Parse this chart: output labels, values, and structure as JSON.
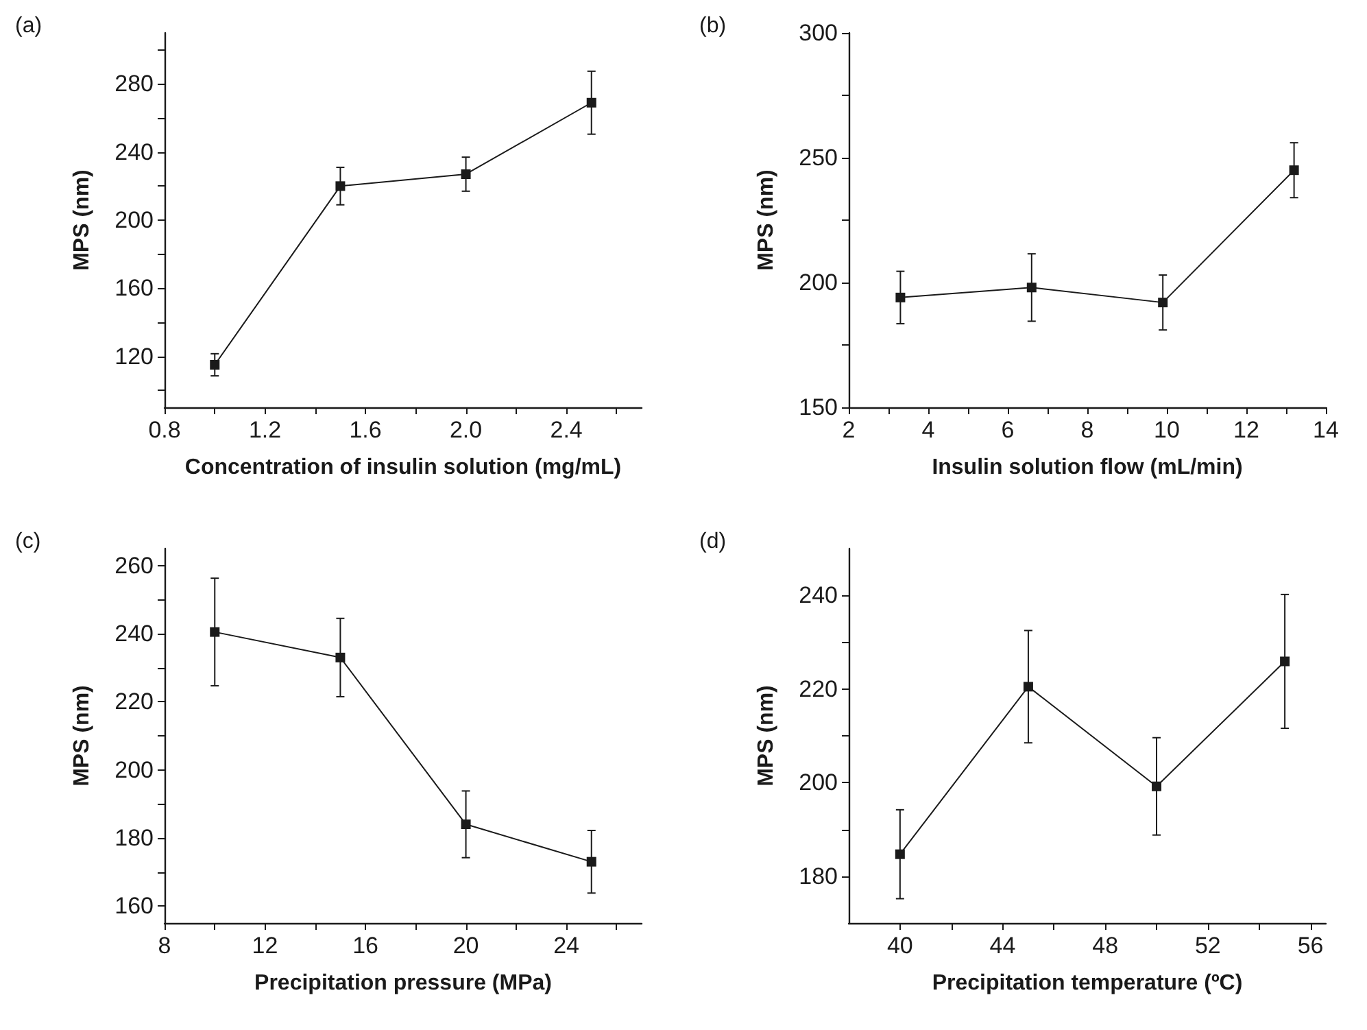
{
  "chart_data": [
    {
      "type": "line",
      "title": "(a)",
      "xlabel": "Concentration of insulin solution (mg/mL)",
      "ylabel": "MPS (nm)",
      "x": [
        1.0,
        1.5,
        2.0,
        2.5
      ],
      "xlim": [
        0.8,
        2.7
      ],
      "ylim": [
        90,
        310
      ],
      "xticks": [
        0.8,
        {
          "value": 1.0,
          "label": null
        },
        1.2,
        {
          "value": 1.4,
          "label": null
        },
        1.6,
        {
          "value": 1.8,
          "label": null
        },
        {
          "value": 2,
          "label": "2.0"
        },
        {
          "value": 2.2,
          "label": null
        },
        2.4,
        {
          "value": 2.6,
          "label": null
        }
      ],
      "yticks": [
        {
          "value": 100,
          "label": null
        },
        120,
        {
          "value": 140,
          "label": null
        },
        160,
        {
          "value": 180,
          "label": null
        },
        200,
        {
          "value": 220,
          "label": null
        },
        240,
        {
          "value": 260,
          "label": null
        },
        280,
        {
          "value": 300,
          "label": null
        }
      ],
      "series": [
        {
          "color": "#1a1a1a",
          "values": [
            115,
            220,
            227,
            269
          ],
          "errors": [
            6.5,
            11,
            10,
            18.5
          ]
        }
      ],
      "marker": "square",
      "line_style": "solid"
    },
    {
      "type": "line",
      "title": "(b)",
      "xlabel": "Insulin solution flow (mL/min)",
      "ylabel": "MPS (nm)",
      "x": [
        3.3,
        6.6,
        9.9,
        13.2
      ],
      "xlim": [
        2,
        14
      ],
      "ylim": [
        150,
        300
      ],
      "xticks": [
        2,
        {
          "value": 3,
          "label": null
        },
        4,
        {
          "value": 5,
          "label": null
        },
        6,
        {
          "value": 7,
          "label": null
        },
        8,
        {
          "value": 9,
          "label": null
        },
        10,
        {
          "value": 11,
          "label": null
        },
        12,
        {
          "value": 13,
          "label": null
        },
        14
      ],
      "yticks": [
        150,
        {
          "value": 175,
          "label": null
        },
        200,
        {
          "value": 225,
          "label": null
        },
        250,
        {
          "value": 275,
          "label": null
        },
        300
      ],
      "series": [
        {
          "color": "#1a1a1a",
          "values": [
            194,
            198,
            192,
            245
          ],
          "errors": [
            10.5,
            13.5,
            11,
            11
          ]
        }
      ],
      "marker": "square",
      "line_style": "solid"
    },
    {
      "type": "line",
      "title": "(c)",
      "xlabel": "Precipitation pressure (MPa)",
      "ylabel": "MPS (nm)",
      "x": [
        10,
        15,
        20,
        25
      ],
      "xlim": [
        8,
        27
      ],
      "ylim": [
        155,
        265
      ],
      "xticks": [
        8,
        {
          "value": 10,
          "label": null
        },
        12,
        {
          "value": 14,
          "label": null
        },
        16,
        {
          "value": 18,
          "label": null
        },
        20,
        {
          "value": 22,
          "label": null
        },
        24,
        {
          "value": 26,
          "label": null
        }
      ],
      "yticks": [
        160,
        {
          "value": 170,
          "label": null
        },
        180,
        {
          "value": 190,
          "label": null
        },
        200,
        {
          "value": 210,
          "label": null
        },
        220,
        {
          "value": 230,
          "label": null
        },
        240,
        {
          "value": 250,
          "label": null
        },
        260
      ],
      "series": [
        {
          "color": "#1a1a1a",
          "values": [
            240.5,
            233,
            184,
            173
          ],
          "errors": [
            15.8,
            11.5,
            9.8,
            9.2
          ]
        }
      ],
      "marker": "square",
      "line_style": "solid"
    },
    {
      "type": "line",
      "title": "(d)",
      "xlabel": "Precipitation temperature (ºC)",
      "ylabel": "MPS (nm)",
      "x": [
        40,
        45,
        50,
        55
      ],
      "xlim": [
        38,
        56.6
      ],
      "ylim": [
        170,
        250
      ],
      "xticks": [
        40,
        {
          "value": 42,
          "label": null
        },
        44,
        {
          "value": 46,
          "label": null
        },
        48,
        {
          "value": 50,
          "label": null
        },
        52,
        {
          "value": 54,
          "label": null
        },
        56
      ],
      "yticks": [
        180,
        {
          "value": 190,
          "label": null
        },
        200,
        {
          "value": 210,
          "label": null
        },
        220,
        {
          "value": 230,
          "label": null
        },
        240
      ],
      "series": [
        {
          "color": "#1a1a1a",
          "values": [
            184.7,
            220.5,
            199.2,
            225.9
          ],
          "errors": [
            9.5,
            12,
            10.4,
            14.3
          ]
        }
      ],
      "marker": "square",
      "line_style": "solid"
    }
  ]
}
